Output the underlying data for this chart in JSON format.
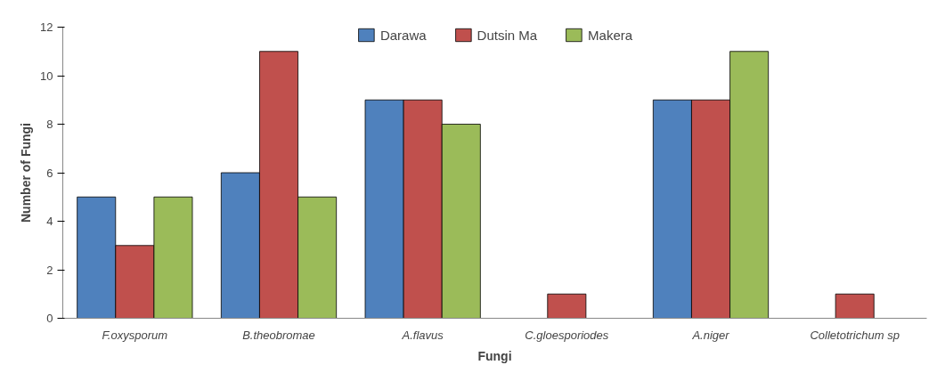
{
  "chart_data": {
    "type": "bar",
    "xlabel": "Fungi",
    "ylabel": "Number of Fungi",
    "categories": [
      "F.oxysporum",
      "B.theobromae",
      "A.flavus",
      "C.gloesporiodes",
      "A.niger",
      "Colletotrichum sp"
    ],
    "series": [
      {
        "name": "Darawa",
        "color": "#4f81bd",
        "values": [
          5,
          6,
          9,
          null,
          9,
          null
        ]
      },
      {
        "name": "Dutsin Ma",
        "color": "#c0504d",
        "values": [
          3,
          11,
          9,
          1,
          9,
          1
        ]
      },
      {
        "name": "Makera",
        "color": "#9bbb59",
        "values": [
          5,
          5,
          8,
          null,
          11,
          null
        ]
      }
    ],
    "ylim": [
      0,
      12
    ],
    "yticks": [
      0,
      2,
      4,
      6,
      8,
      10,
      12
    ],
    "grid": false,
    "legend": "top"
  }
}
